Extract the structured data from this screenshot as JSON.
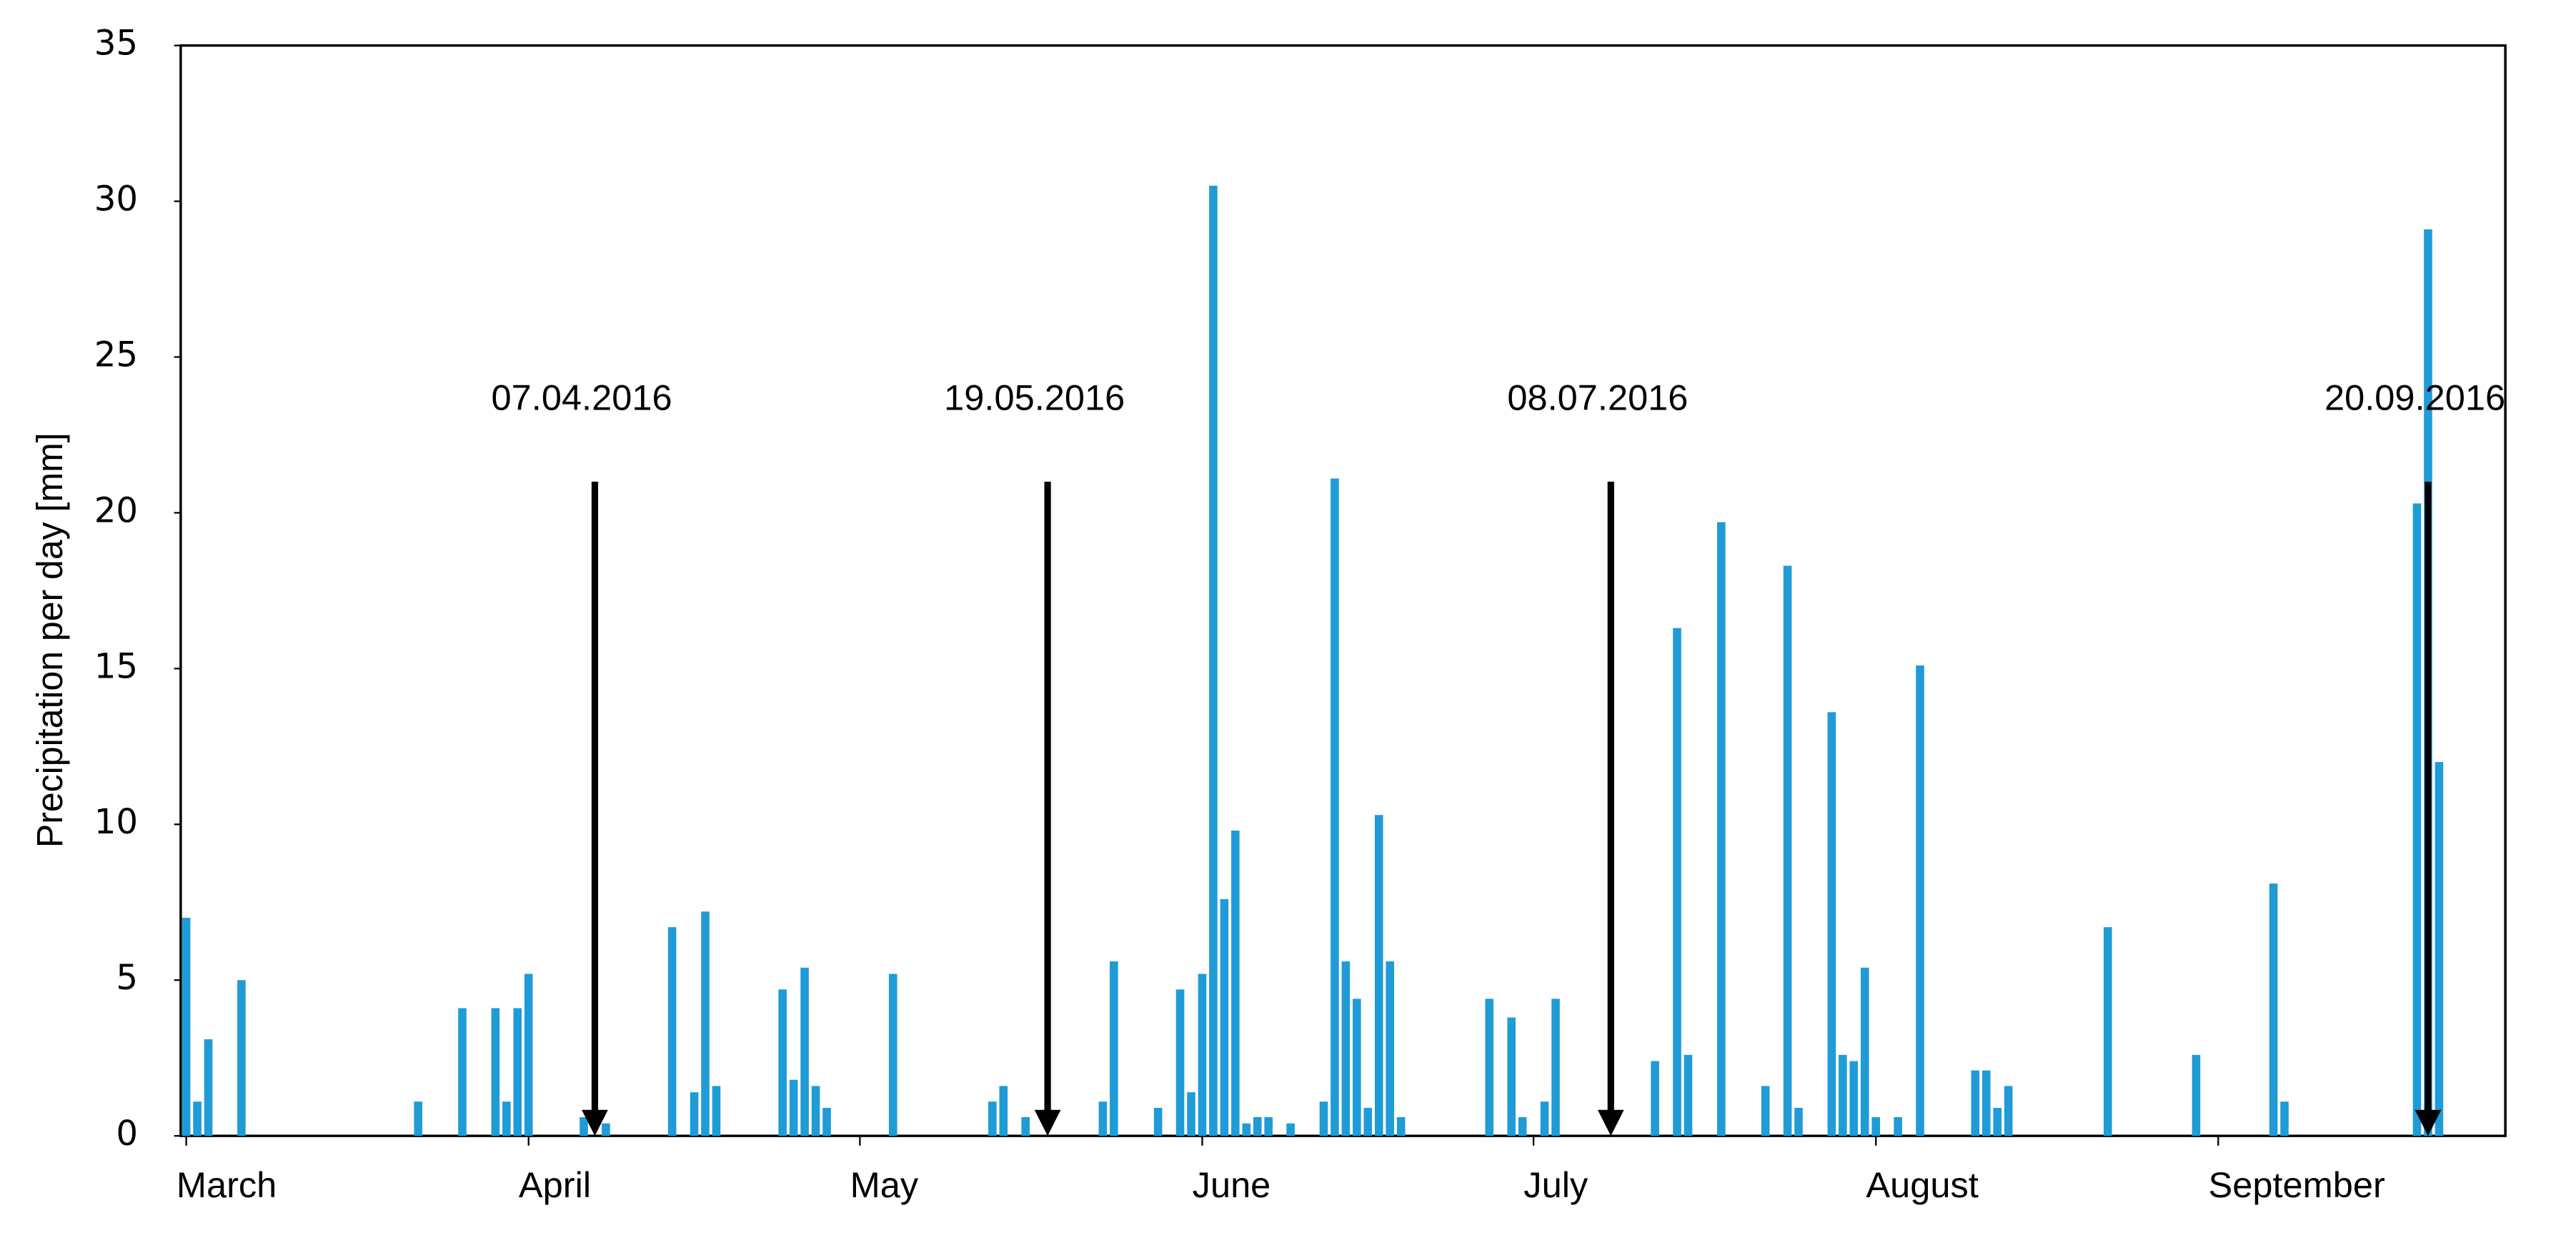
{
  "chart_data": {
    "type": "bar",
    "y_label": "Precipitation per day [mm]",
    "color": "#1f9bd7",
    "x": [
      0,
      1,
      2,
      5,
      21,
      25,
      28,
      29,
      30,
      31,
      36,
      38,
      44,
      46,
      47,
      48,
      54,
      55,
      56,
      57,
      58,
      64,
      73,
      74,
      76,
      83,
      84,
      88,
      90,
      91,
      92,
      93,
      94,
      95,
      96,
      97,
      98,
      100,
      103,
      104,
      105,
      106,
      107,
      108,
      109,
      110,
      118,
      120,
      121,
      123,
      124,
      133,
      135,
      136,
      139,
      143,
      145,
      146,
      149,
      150,
      151,
      152,
      153,
      155,
      157,
      162,
      163,
      164,
      165,
      174,
      182,
      189,
      190,
      202,
      203,
      204
    ],
    "values": [
      7.0,
      1.1,
      3.1,
      5.0,
      1.1,
      4.1,
      4.1,
      1.1,
      4.1,
      5.2,
      0.6,
      0.4,
      6.7,
      1.4,
      7.2,
      1.6,
      4.7,
      1.8,
      5.4,
      1.6,
      0.9,
      5.2,
      1.1,
      1.6,
      0.6,
      1.1,
      5.6,
      0.9,
      4.7,
      1.4,
      5.2,
      30.5,
      7.6,
      9.8,
      0.4,
      0.6,
      0.6,
      0.4,
      1.1,
      21.1,
      5.6,
      4.4,
      0.9,
      10.3,
      5.6,
      0.6,
      4.4,
      3.8,
      0.6,
      1.1,
      4.4,
      2.4,
      16.3,
      2.6,
      19.7,
      1.6,
      18.3,
      0.9,
      13.6,
      2.6,
      2.4,
      5.4,
      0.6,
      0.6,
      15.1,
      2.1,
      2.1,
      0.9,
      1.6,
      6.7,
      2.6,
      8.1,
      1.1,
      20.3,
      29.1,
      12.0
    ],
    "xlim": [
      -0.5,
      210
    ],
    "xticks": [
      {
        "value": 0,
        "label": "March"
      },
      {
        "value": 31,
        "label": "April"
      },
      {
        "value": 61,
        "label": "May"
      },
      {
        "value": 92,
        "label": "June"
      },
      {
        "value": 122,
        "label": "July"
      },
      {
        "value": 153,
        "label": "August"
      },
      {
        "value": 184,
        "label": "September"
      }
    ],
    "ylim": [
      0,
      35
    ],
    "yticks": [
      0,
      5,
      10,
      15,
      20,
      25,
      30,
      35
    ],
    "annotations": [
      {
        "text": "07.04.2016",
        "x": 37,
        "y": 21
      },
      {
        "text": "19.05.2016",
        "x": 78,
        "y": 21
      },
      {
        "text": "08.07.2016",
        "x": 129,
        "y": 21
      },
      {
        "text": "20.09.2016",
        "x": 203,
        "y": 21
      }
    ]
  }
}
